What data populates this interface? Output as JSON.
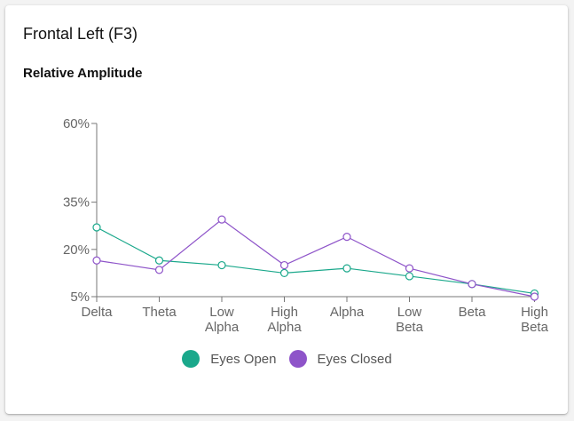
{
  "card": {
    "title": "Frontal Left (F3)",
    "subtitle": "Relative Amplitude"
  },
  "chart_data": {
    "type": "line",
    "ylabel": "Relative Amplitude",
    "categories": [
      [
        "Delta"
      ],
      [
        "Theta"
      ],
      [
        "Low",
        "Alpha"
      ],
      [
        "High",
        "Alpha"
      ],
      [
        "Alpha"
      ],
      [
        "Low",
        "Beta"
      ],
      [
        "Beta"
      ],
      [
        "High",
        "Beta"
      ]
    ],
    "y_ticks": [
      5,
      20,
      35,
      60
    ],
    "y_tick_labels": [
      "5%",
      "20%",
      "35%",
      "60%"
    ],
    "series": [
      {
        "name": "Eyes Open",
        "color": "#1aa88b",
        "values": [
          27,
          16.5,
          15,
          12.5,
          14,
          11.5,
          9,
          6
        ]
      },
      {
        "name": "Eyes Closed",
        "color": "#8e54c9",
        "values": [
          16.5,
          13.5,
          29.5,
          15,
          24,
          14,
          9,
          5
        ]
      }
    ],
    "legend_position": "bottom",
    "grid": false
  }
}
